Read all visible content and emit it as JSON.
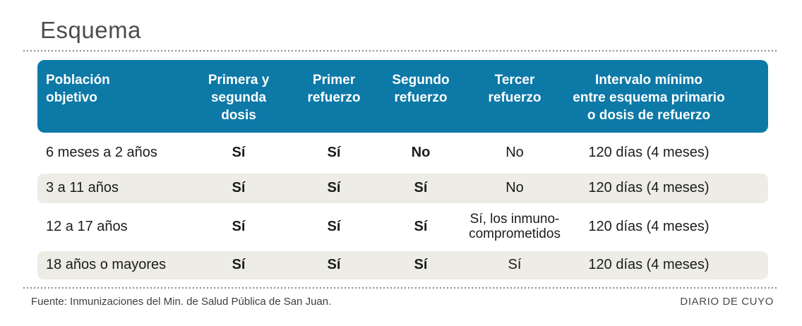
{
  "title": "Esquema",
  "colors": {
    "header_bg": "#0d79a7",
    "alt_row_bg": "#edece5",
    "header_text": "#ffffff",
    "body_text": "#1c1c1c"
  },
  "header": {
    "col1": "Población\nobjetivo",
    "col2": "Primera y\nsegunda\ndosis",
    "col3": "Primer\nrefuerzo",
    "col4": "Segundo\nrefuerzo",
    "col5": "Tercer\nrefuerzo",
    "col6": "Intervalo mínimo\nentre esquema primario\no dosis de refuerzo"
  },
  "rows": [
    {
      "cells": [
        "6 meses a 2 años",
        "Sí",
        "Sí",
        "No",
        "No",
        "120 días (4 meses)"
      ]
    },
    {
      "cells": [
        "3 a 11 años",
        "Sí",
        "Sí",
        "Sí",
        "No",
        "120 días (4 meses)"
      ]
    },
    {
      "cells": [
        "12 a 17 años",
        "Sí",
        "Sí",
        "Sí",
        "Sí, los inmuno-\ncomprometidos",
        "120 días (4 meses)"
      ]
    },
    {
      "cells": [
        "18 años o mayores",
        "Sí",
        "Sí",
        "Sí",
        "Sí",
        "120 días (4 meses)"
      ]
    }
  ],
  "footer": {
    "source": "Fuente: Inmunizaciones del Min. de Salud Pública de San Juan.",
    "credit": "DIARIO DE CUYO"
  },
  "chart_data": {
    "type": "table",
    "title": "Esquema",
    "columns": [
      "Población objetivo",
      "Primera y segunda dosis",
      "Primer refuerzo",
      "Segundo refuerzo",
      "Tercer refuerzo",
      "Intervalo mínimo entre esquema primario o dosis de refuerzo"
    ],
    "rows": [
      [
        "6 meses a 2 años",
        "Sí",
        "Sí",
        "No",
        "No",
        "120 días (4 meses)"
      ],
      [
        "3 a 11 años",
        "Sí",
        "Sí",
        "Sí",
        "No",
        "120 días (4 meses)"
      ],
      [
        "12 a 17 años",
        "Sí",
        "Sí",
        "Sí",
        "Sí, los inmunocomprometidos",
        "120 días (4 meses)"
      ],
      [
        "18 años o mayores",
        "Sí",
        "Sí",
        "Sí",
        "Sí",
        "120 días (4 meses)"
      ]
    ],
    "source": "Fuente: Inmunizaciones del Min. de Salud Pública de San Juan.",
    "credit": "DIARIO DE CUYO"
  }
}
